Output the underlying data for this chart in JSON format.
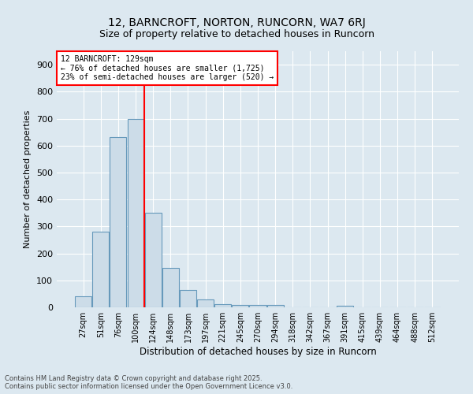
{
  "title": "12, BARNCROFT, NORTON, RUNCORN, WA7 6RJ",
  "subtitle": "Size of property relative to detached houses in Runcorn",
  "xlabel": "Distribution of detached houses by size in Runcorn",
  "ylabel": "Number of detached properties",
  "bar_labels": [
    "27sqm",
    "51sqm",
    "76sqm",
    "100sqm",
    "124sqm",
    "148sqm",
    "173sqm",
    "197sqm",
    "221sqm",
    "245sqm",
    "270sqm",
    "294sqm",
    "318sqm",
    "342sqm",
    "367sqm",
    "391sqm",
    "415sqm",
    "439sqm",
    "464sqm",
    "488sqm",
    "512sqm"
  ],
  "bar_values": [
    40,
    280,
    630,
    700,
    350,
    145,
    65,
    28,
    12,
    10,
    10,
    10,
    0,
    0,
    0,
    7,
    0,
    0,
    0,
    0,
    0
  ],
  "bar_color": "#ccdce8",
  "bar_edge_color": "#6699bb",
  "background_color": "#dce8f0",
  "grid_color": "#ffffff",
  "vline_color": "red",
  "vline_x_index": 3.5,
  "annotation_line1": "12 BARNCROFT: 129sqm",
  "annotation_line2": "← 76% of detached houses are smaller (1,725)",
  "annotation_line3": "23% of semi-detached houses are larger (520) →",
  "annotation_box_color": "white",
  "annotation_border_color": "red",
  "ylim": [
    0,
    950
  ],
  "yticks": [
    0,
    100,
    200,
    300,
    400,
    500,
    600,
    700,
    800,
    900
  ],
  "title_fontsize": 10,
  "subtitle_fontsize": 9,
  "footer_line1": "Contains HM Land Registry data © Crown copyright and database right 2025.",
  "footer_line2": "Contains public sector information licensed under the Open Government Licence v3.0."
}
